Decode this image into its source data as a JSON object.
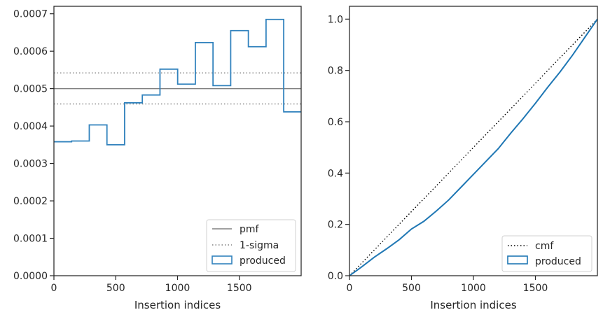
{
  "chart_data": [
    {
      "type": "histogram",
      "xlabel": "Insertion indices",
      "ylabel": "",
      "xlim": [
        0,
        2000
      ],
      "ylim": [
        0,
        0.00072
      ],
      "xticks": [
        0,
        500,
        1000,
        1500
      ],
      "yticks": [
        "0.0000",
        "0.0001",
        "0.0002",
        "0.0003",
        "0.0004",
        "0.0005",
        "0.0006",
        "0.0007"
      ],
      "bin_edges": [
        0,
        143,
        286,
        429,
        572,
        715,
        858,
        1001,
        1144,
        1287,
        1430,
        1573,
        1716,
        1859,
        2000
      ],
      "values": [
        0.000358,
        0.00036,
        0.000403,
        0.00035,
        0.000462,
        0.000483,
        0.000552,
        0.000512,
        0.000623,
        0.000508,
        0.000655,
        0.000612,
        0.000685,
        0.000438
      ],
      "pmf": 0.0005,
      "sigma_lines": [
        0.000542,
        0.000459
      ],
      "legend": [
        "pmf",
        "1-sigma",
        "produced"
      ],
      "legend_position": "lower right",
      "grid": false,
      "colors": {
        "produced": "#3182bd",
        "pmf": "#808080",
        "sigma": "#808080"
      }
    },
    {
      "type": "line",
      "xlabel": "Insertion indices",
      "ylabel": "",
      "xlim": [
        0,
        2000
      ],
      "ylim": [
        0,
        1.05
      ],
      "xticks": [
        0,
        500,
        1000,
        1500
      ],
      "yticks": [
        "0.0",
        "0.2",
        "0.4",
        "0.6",
        "0.8",
        "1.0"
      ],
      "series": [
        {
          "name": "cmf",
          "x": [
            0,
            2000
          ],
          "y": [
            0,
            1.0
          ],
          "style": "dotted",
          "color": "#000000"
        },
        {
          "name": "produced",
          "style": "step",
          "color": "#1f77b4",
          "x": [
            0,
            100,
            200,
            300,
            400,
            500,
            600,
            700,
            800,
            900,
            1000,
            1100,
            1200,
            1300,
            1400,
            1500,
            1600,
            1700,
            1800,
            1900,
            2000
          ],
          "y": [
            0,
            0.035,
            0.072,
            0.105,
            0.14,
            0.182,
            0.212,
            0.252,
            0.295,
            0.345,
            0.395,
            0.445,
            0.495,
            0.555,
            0.612,
            0.672,
            0.735,
            0.795,
            0.86,
            0.93,
            1.0
          ]
        }
      ],
      "legend": [
        "cmf",
        "produced"
      ],
      "legend_position": "lower right",
      "grid": false
    }
  ]
}
